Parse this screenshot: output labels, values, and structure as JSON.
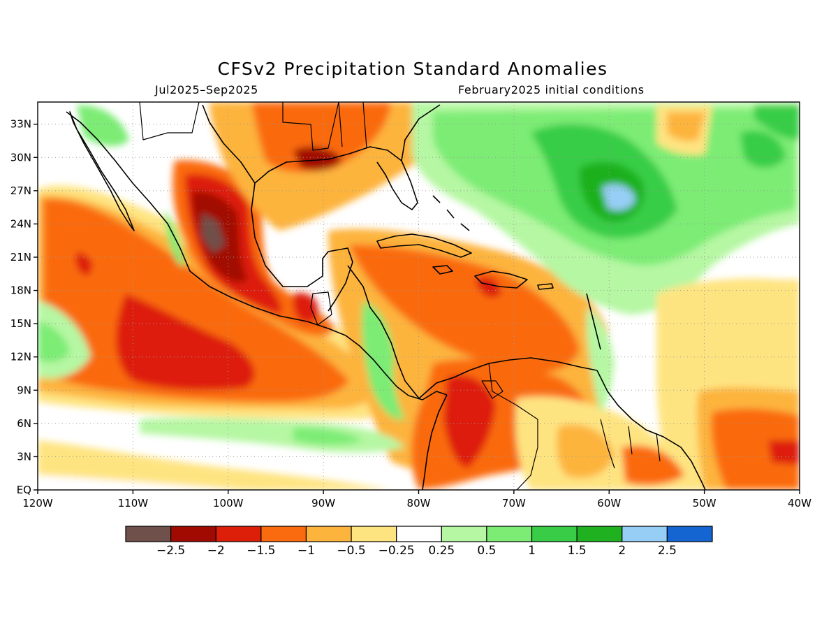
{
  "title": "CFSv2 Precipitation Standard Anomalies",
  "subtitle_left": "Jul2025–Sep2025",
  "subtitle_right": "February2025 initial conditions",
  "map": {
    "lon_range": [
      -120,
      -40
    ],
    "lat_range": [
      0,
      35
    ],
    "lon_ticks": [
      {
        "value": -120,
        "label": "120W"
      },
      {
        "value": -110,
        "label": "110W"
      },
      {
        "value": -100,
        "label": "100W"
      },
      {
        "value": -90,
        "label": "90W"
      },
      {
        "value": -80,
        "label": "80W"
      },
      {
        "value": -70,
        "label": "70W"
      },
      {
        "value": -60,
        "label": "60W"
      },
      {
        "value": -50,
        "label": "50W"
      },
      {
        "value": -40,
        "label": "40W"
      }
    ],
    "lat_ticks": [
      {
        "value": 0,
        "label": "EQ"
      },
      {
        "value": 3,
        "label": "3N"
      },
      {
        "value": 6,
        "label": "6N"
      },
      {
        "value": 9,
        "label": "9N"
      },
      {
        "value": 12,
        "label": "12N"
      },
      {
        "value": 15,
        "label": "15N"
      },
      {
        "value": 18,
        "label": "18N"
      },
      {
        "value": 21,
        "label": "21N"
      },
      {
        "value": 24,
        "label": "24N"
      },
      {
        "value": 27,
        "label": "27N"
      },
      {
        "value": 30,
        "label": "30N"
      },
      {
        "value": 33,
        "label": "33N"
      }
    ],
    "grid": "dotted"
  },
  "colorbar": {
    "colors": [
      "#70504a",
      "#a10a00",
      "#dd1e08",
      "#fa6a0f",
      "#fdb43c",
      "#fee481",
      "#ffffff",
      "#b6f7a3",
      "#7cec74",
      "#39cd47",
      "#1fb11f",
      "#96cef5",
      "#1464d2"
    ],
    "labels": [
      "−2.5",
      "−2",
      "−1.5",
      "−1",
      "−0.5",
      "−0.25",
      "0.25",
      "0.5",
      "1",
      "1.5",
      "2",
      "2.5"
    ]
  }
}
